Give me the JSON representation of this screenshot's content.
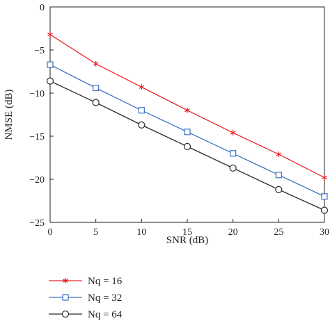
{
  "chart_data": {
    "type": "line",
    "xlabel": "SNR (dB)",
    "ylabel": "NMSE (dB)",
    "xlim": [
      0,
      30
    ],
    "ylim": [
      -25,
      0
    ],
    "xticks": [
      0,
      5,
      10,
      15,
      20,
      25,
      30
    ],
    "yticks": [
      0,
      -5,
      -10,
      -15,
      -20,
      -25
    ],
    "x": [
      0,
      5,
      10,
      15,
      20,
      25,
      30
    ],
    "grid": false,
    "legend_position": "bottom-left, below the axes",
    "series": [
      {
        "name": "Nq = 16",
        "color": "#e8262b",
        "marker": "asterisk",
        "values": [
          -3.2,
          -6.6,
          -9.3,
          -12.0,
          -14.6,
          -17.1,
          -19.8
        ]
      },
      {
        "name": "Nq = 32",
        "color": "#3b6fc4",
        "marker": "square",
        "values": [
          -6.7,
          -9.4,
          -12.0,
          -14.5,
          -17.0,
          -19.5,
          -22.0
        ]
      },
      {
        "name": "Nq = 64",
        "color": "#2b2b2b",
        "marker": "circle",
        "values": [
          -8.6,
          -11.1,
          -13.7,
          -16.2,
          -18.7,
          -21.2,
          -23.6
        ]
      }
    ]
  }
}
